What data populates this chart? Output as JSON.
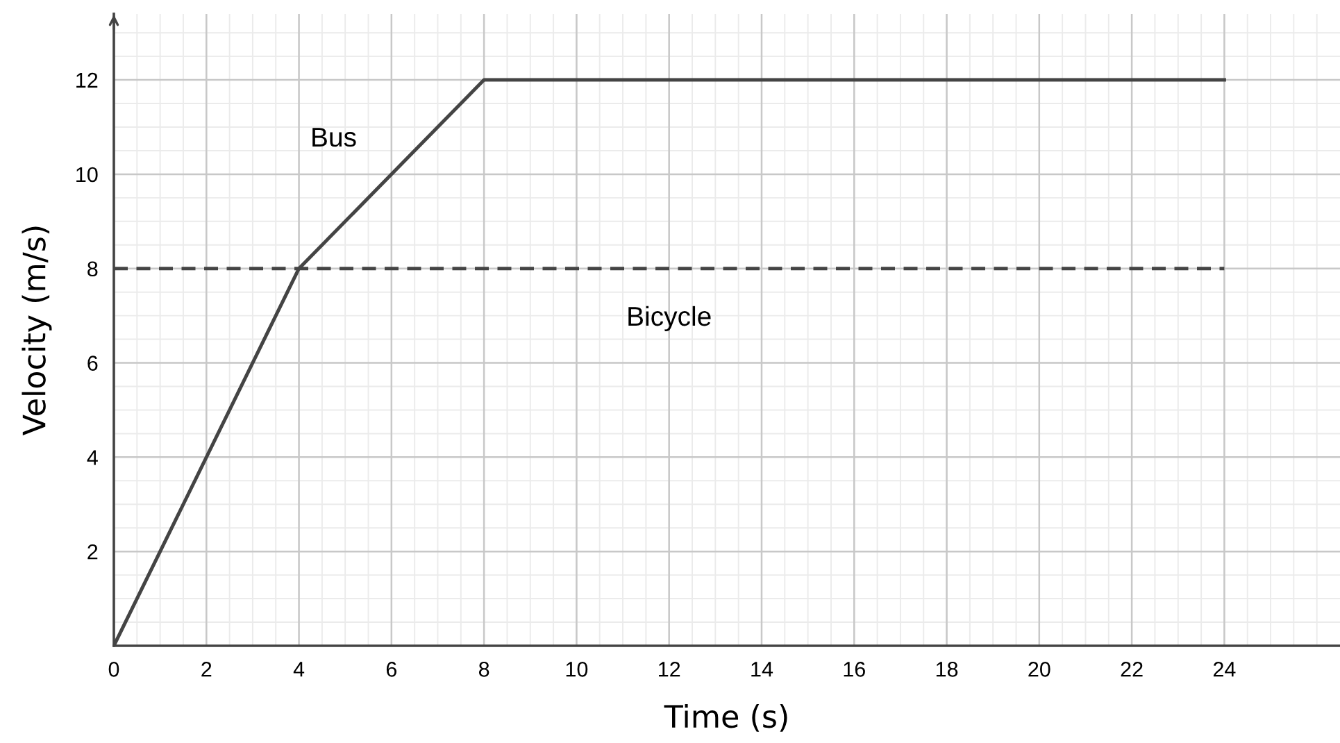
{
  "chart_data": {
    "type": "line",
    "xlabel": "Time (s)",
    "ylabel": "Velocity (m/s)",
    "xlim": [
      0,
      26.5
    ],
    "ylim": [
      0,
      13.4
    ],
    "xticks": [
      0,
      2,
      4,
      6,
      8,
      10,
      12,
      14,
      16,
      18,
      20,
      22,
      24
    ],
    "yticks": [
      2,
      4,
      6,
      8,
      10,
      12
    ],
    "grid": true,
    "marker": "none",
    "series": [
      {
        "name": "Bus",
        "color": "#444444",
        "x": [
          0,
          4,
          8,
          24
        ],
        "values": [
          0,
          8,
          12,
          12
        ],
        "line_style": "solid"
      },
      {
        "name": "Bicycle",
        "color": "#444444",
        "x": [
          0,
          24
        ],
        "values": [
          8,
          8
        ],
        "line_style": "dashed"
      }
    ]
  }
}
